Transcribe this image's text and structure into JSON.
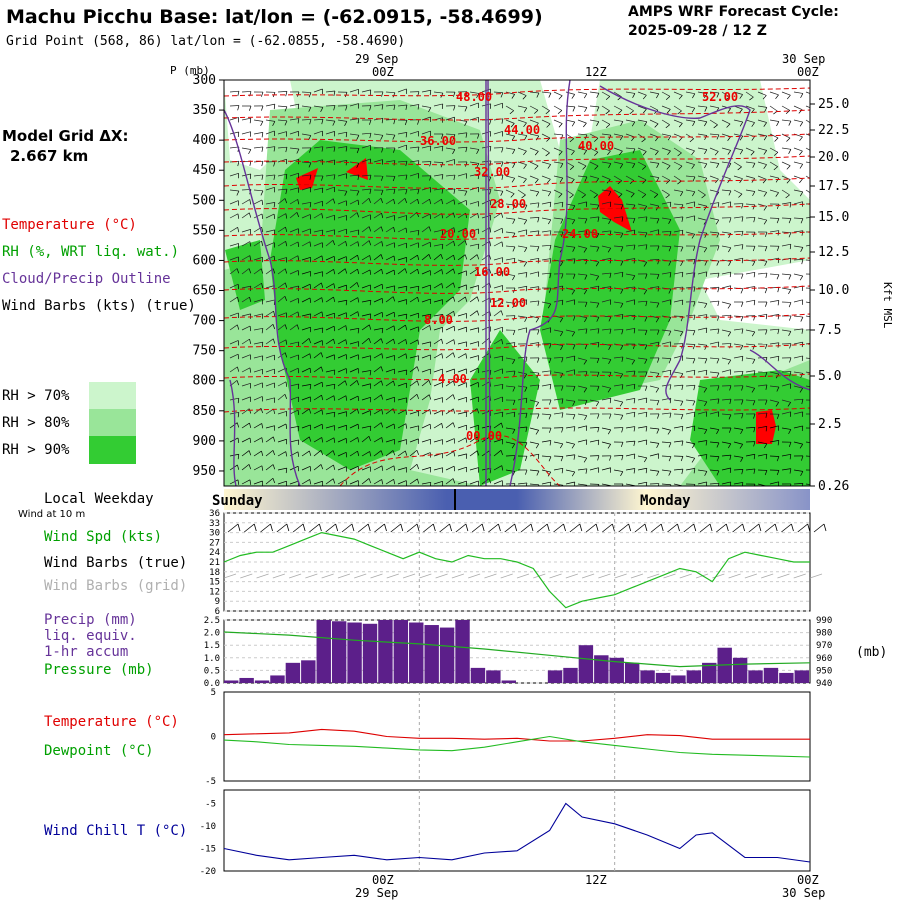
{
  "header": {
    "title": "Machu Picchu Base:  lat/lon = (-62.0915, -58.4699)",
    "subtitle": "Grid Point (568, 86) lat/lon = (-62.0855, -58.4690)",
    "cycle_line1": "AMPS WRF Forecast Cycle:",
    "cycle_line2": "2025-09-28 / 12  Z"
  },
  "left_panel": {
    "model_grid_line1": "Model Grid ΔX:",
    "model_grid_line2": "2.667 km",
    "legend_temperature": "Temperature (°C)",
    "legend_rh": "RH (%, WRT liq. wat.)",
    "legend_cloud": "Cloud/Precip Outline",
    "legend_wind": "Wind Barbs (kts) (true)",
    "rh_keys": [
      {
        "label": "RH > 70%",
        "color": "#ccf5cc"
      },
      {
        "label": "RH > 80%",
        "color": "#99e599"
      },
      {
        "label": "RH > 90%",
        "color": "#33cc33"
      }
    ],
    "local_weekday": "Local Weekday",
    "wind_10m": "Wind at 10 m",
    "wind_spd": "Wind Spd (kts)",
    "wind_barbs_true": "Wind Barbs (true)",
    "wind_barbs_grid": "Wind Barbs (grid)",
    "precip_line1": "Precip (mm)",
    "precip_line2": "liq. equiv.",
    "precip_line3": "1-hr accum",
    "pressure": "Pressure (mb)",
    "temperature": "Temperature (°C)",
    "dewpoint": "Dewpoint (°C)",
    "wind_chill": "Wind Chill T (°C)"
  },
  "time_axis": {
    "top_date_mid": "29 Sep",
    "top_date_right": "30 Sep",
    "ticks": [
      "00Z",
      "12Z",
      "00Z"
    ],
    "bottom_date_mid": "29 Sep",
    "bottom_date_right": "30 Sep",
    "weekday_left": "Sunday",
    "weekday_right": "Monday"
  },
  "chart_data": [
    {
      "type": "heatmap",
      "name": "cross-section",
      "ylabel_left": "P (mb)",
      "ylabel_right": "Kft MSL",
      "pressure_ticks": [
        "300",
        "350",
        "400",
        "450",
        "500",
        "550",
        "600",
        "650",
        "700",
        "750",
        "800",
        "850",
        "900",
        "950"
      ],
      "height_ticks": [
        "25.0",
        "22.5",
        "20.0",
        "17.5",
        "15.0",
        "12.5",
        "10.0",
        "7.5",
        "5.0",
        "2.5",
        "0.26"
      ],
      "temperature_contour_labels": [
        "48.00",
        "44.00",
        "52.00",
        "36.00",
        "40.00",
        "32.00",
        "28.00",
        "20.00",
        "24.00",
        "16.00",
        "12.00",
        "8.00",
        "4.00",
        "00.00"
      ],
      "x_hours": [
        0,
        36
      ],
      "ylim": [
        300,
        975
      ]
    },
    {
      "type": "line",
      "name": "wind-speed",
      "y_ticks": [
        "36",
        "33",
        "30",
        "27",
        "24",
        "21",
        "18",
        "15",
        "12",
        "9",
        "6"
      ],
      "ylim": [
        6,
        36
      ],
      "x_hours": [
        0,
        1,
        2,
        3,
        4,
        5,
        6,
        7,
        8,
        9,
        10,
        11,
        12,
        13,
        14,
        15,
        16,
        17,
        18,
        19,
        20,
        21,
        22,
        23,
        24,
        25,
        26,
        27,
        28,
        29,
        30,
        31,
        32,
        33,
        34,
        35,
        36
      ],
      "values": [
        21,
        23,
        24,
        24,
        26,
        28,
        30,
        29,
        28,
        26,
        24,
        22,
        24,
        22,
        21,
        23,
        22,
        22,
        21,
        19,
        12,
        7,
        9,
        10,
        11,
        13,
        15,
        17,
        19,
        18,
        15,
        22,
        24,
        23,
        22,
        21,
        21
      ]
    },
    {
      "type": "bar",
      "name": "precip-pressure",
      "y_ticks_left": [
        "2.5",
        "2.0",
        "1.5",
        "1.0",
        "0.5",
        "0.0"
      ],
      "y_ticks_right": [
        "990",
        "980",
        "970",
        "960",
        "950",
        "940"
      ],
      "ylabel_right": "(mb)",
      "precip_ylim": [
        0,
        2.5
      ],
      "pressure_ylim": [
        940,
        990
      ],
      "precip_values": [
        0.1,
        0.2,
        0.1,
        0.3,
        0.8,
        0.9,
        2.5,
        2.45,
        2.4,
        2.35,
        2.5,
        2.5,
        2.4,
        2.3,
        2.2,
        2.5,
        0.6,
        0.5,
        0.1,
        0.0,
        0.0,
        0.5,
        0.6,
        1.5,
        1.1,
        1.0,
        0.8,
        0.5,
        0.4,
        0.3,
        0.5,
        0.8,
        1.4,
        1.0,
        0.5,
        0.6,
        0.4,
        0.5
      ],
      "pressure_hours": [
        0,
        4,
        8,
        12,
        16,
        20,
        24,
        28,
        32,
        36
      ],
      "pressure_values": [
        980.5,
        978,
        974,
        971,
        967,
        962,
        957,
        953,
        955,
        956
      ]
    },
    {
      "type": "line",
      "name": "temp-dewpoint",
      "y_ticks": [
        "5",
        "0",
        "-5"
      ],
      "ylim": [
        -5,
        5
      ],
      "x_hours": [
        0,
        2,
        4,
        6,
        8,
        10,
        12,
        14,
        16,
        18,
        20,
        22,
        24,
        26,
        28,
        30,
        32,
        34,
        36
      ],
      "temperature": [
        0.2,
        0.3,
        0.4,
        0.8,
        0.6,
        0.0,
        -0.2,
        -0.2,
        -0.3,
        -0.2,
        -0.5,
        -0.5,
        -0.2,
        0.2,
        0.1,
        -0.3,
        -0.3,
        -0.3,
        -0.3
      ],
      "dewpoint": [
        -0.4,
        -0.6,
        -0.9,
        -1.0,
        -1.1,
        -1.3,
        -1.5,
        -1.6,
        -1.2,
        -0.6,
        0.0,
        -0.6,
        -1.0,
        -1.4,
        -1.8,
        -2.0,
        -2.1,
        -2.2,
        -2.3
      ]
    },
    {
      "type": "line",
      "name": "wind-chill",
      "y_ticks": [
        "-5",
        "-10",
        "-15",
        "-20"
      ],
      "ylim": [
        -20,
        -2
      ],
      "x_hours": [
        0,
        2,
        4,
        6,
        8,
        10,
        12,
        14,
        16,
        18,
        20,
        21,
        22,
        24,
        26,
        28,
        29,
        30,
        32,
        34,
        36
      ],
      "values": [
        -15,
        -16.5,
        -17.5,
        -17,
        -16.5,
        -17.5,
        -17,
        -17.5,
        -16,
        -15.5,
        -11,
        -5,
        -8,
        -9.5,
        -12,
        -15,
        -12,
        -11.5,
        -17,
        -17,
        -18
      ]
    }
  ]
}
